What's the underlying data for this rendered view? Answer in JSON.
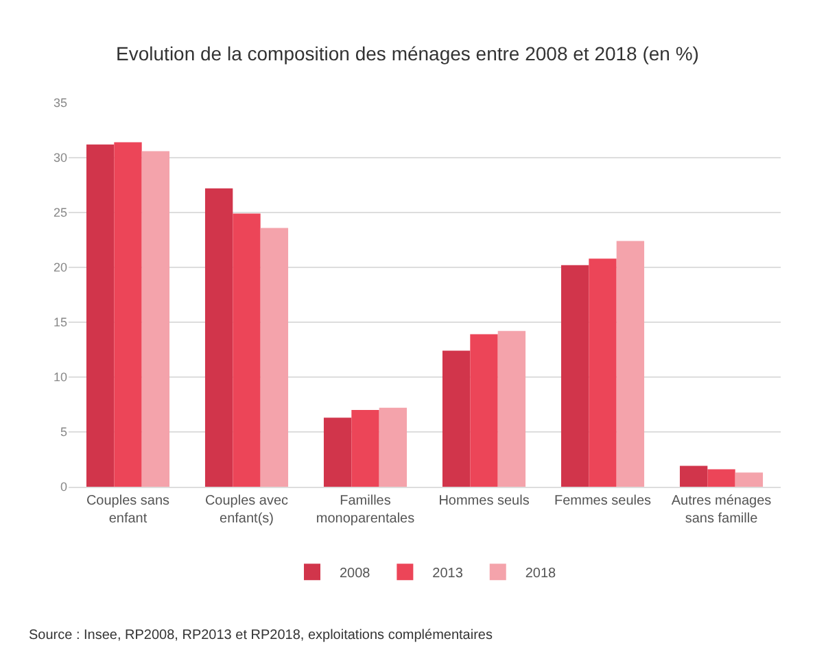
{
  "chart_data": {
    "type": "bar",
    "title": "Evolution de la composition des ménages entre 2008 et 2018 (en %)",
    "categories": [
      "Couples sans enfant",
      "Couples avec enfant(s)",
      "Familles monoparentales",
      "Hommes seuls",
      "Femmes seules",
      "Autres ménages sans famille"
    ],
    "series": [
      {
        "name": "2008",
        "color": "#d1354b",
        "values": [
          31.2,
          27.2,
          6.3,
          12.4,
          20.2,
          1.9
        ]
      },
      {
        "name": "2013",
        "color": "#ec4558",
        "values": [
          31.4,
          24.9,
          7.0,
          13.9,
          20.8,
          1.6
        ]
      },
      {
        "name": "2018",
        "color": "#f4a3ab",
        "values": [
          30.6,
          23.6,
          7.2,
          14.2,
          22.4,
          1.3
        ]
      }
    ],
    "ylim": [
      0,
      35
    ],
    "yticks": [
      0,
      5,
      10,
      15,
      20,
      25,
      30,
      35
    ],
    "grid": "y",
    "legend": "bottom",
    "annotations": [
      "Source : Insee, RP2008, RP2013 et RP2018, exploitations complémentaires"
    ]
  }
}
